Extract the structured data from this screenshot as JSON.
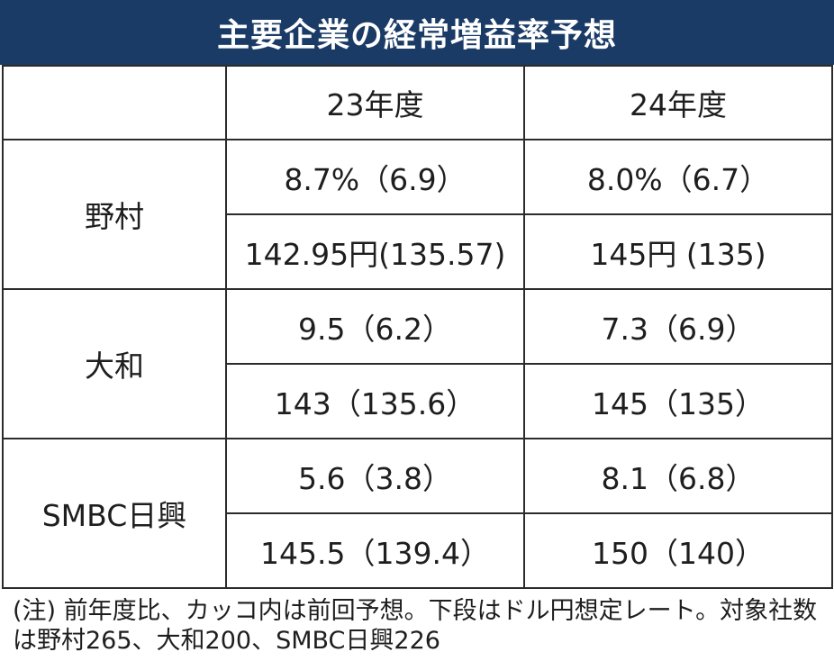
{
  "title": "主要企業の経常増益率予想",
  "columns": [
    "",
    "23年度",
    "24年度"
  ],
  "rows": [
    {
      "company": "野村",
      "growth": [
        "8.7%（6.9）",
        "8.0%（6.7）"
      ],
      "rate": [
        "142.95円(135.57)",
        "145円 (135)"
      ]
    },
    {
      "company": "大和",
      "growth": [
        "9.5（6.2）",
        "7.3（6.9）"
      ],
      "rate": [
        "143（135.6）",
        "145（135）"
      ]
    },
    {
      "company": "SMBC日興",
      "growth": [
        "5.6（3.8）",
        "8.1（6.8）"
      ],
      "rate": [
        "145.5（139.4）",
        "150（140）"
      ]
    }
  ],
  "footnote": "(注) 前年度比、カッコ内は前回予想。下段はドル円想定レート。対象社数は野村265、大和200、SMBC日興226"
}
